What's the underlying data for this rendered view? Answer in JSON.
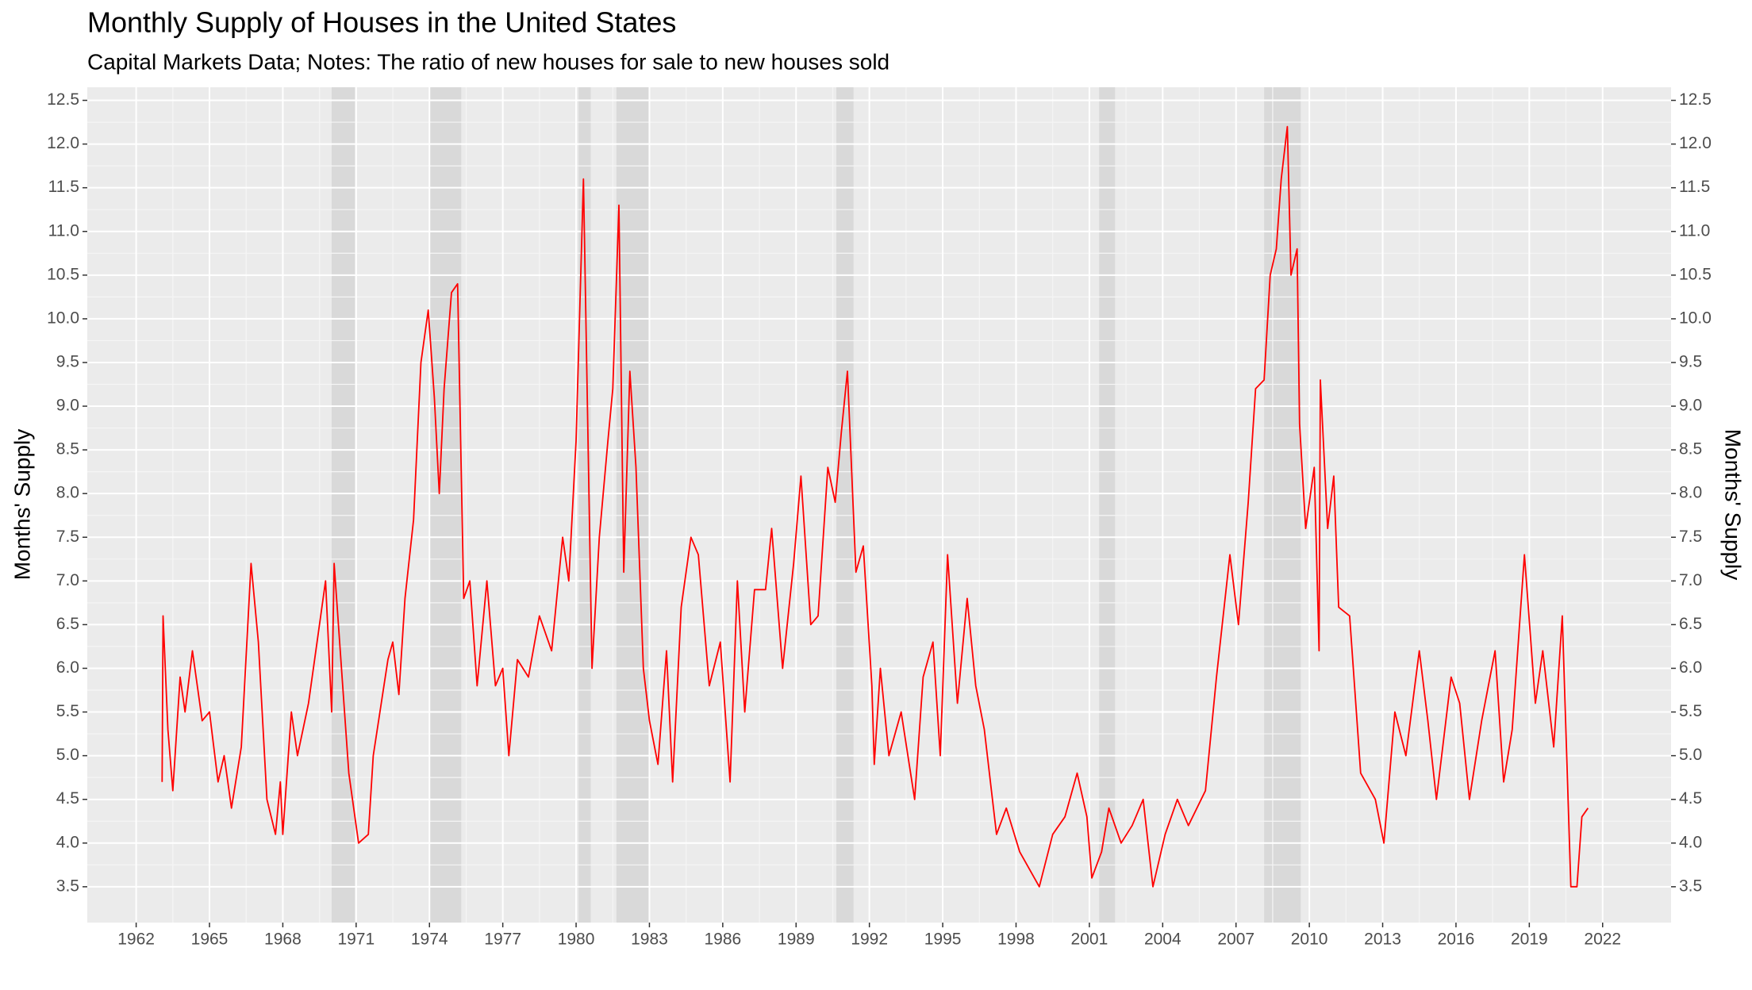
{
  "chart_data": {
    "type": "line",
    "title": "Monthly Supply of Houses in the United States",
    "subtitle": "Capital Markets Data; Notes: The ratio of new houses for sale to new houses sold",
    "y_label": "Months' Supply",
    "y2_label": "Months' Supply",
    "x": [
      1963.06,
      1963.1,
      1963.3,
      1963.5,
      1963.8,
      1964.0,
      1964.3,
      1964.7,
      1965.0,
      1965.35,
      1965.6,
      1965.9,
      1966.3,
      1966.7,
      1967.0,
      1967.35,
      1967.7,
      1967.9,
      1968.0,
      1968.35,
      1968.6,
      1969.05,
      1969.3,
      1969.75,
      1970.0,
      1970.1,
      1970.7,
      1971.1,
      1971.5,
      1971.7,
      1972.3,
      1972.5,
      1972.75,
      1973.0,
      1973.35,
      1973.65,
      1973.95,
      1974.2,
      1974.4,
      1974.6,
      1974.9,
      1975.15,
      1975.4,
      1975.65,
      1975.95,
      1976.35,
      1976.7,
      1977.0,
      1977.25,
      1977.6,
      1978.05,
      1978.5,
      1979.0,
      1979.45,
      1979.7,
      1980.0,
      1980.3,
      1980.65,
      1980.95,
      1981.3,
      1981.5,
      1981.75,
      1981.95,
      1982.2,
      1982.45,
      1982.75,
      1983.0,
      1983.35,
      1983.7,
      1983.95,
      1984.3,
      1984.7,
      1985.0,
      1985.45,
      1985.9,
      1986.3,
      1986.6,
      1986.9,
      1987.3,
      1987.75,
      1988.0,
      1988.45,
      1988.9,
      1989.2,
      1989.6,
      1989.9,
      1990.3,
      1990.6,
      1990.85,
      1991.1,
      1991.45,
      1991.75,
      1992.1,
      1992.2,
      1992.45,
      1992.8,
      1993.3,
      1993.85,
      1994.2,
      1994.6,
      1994.9,
      1995.2,
      1995.6,
      1996.0,
      1996.35,
      1996.7,
      1997.2,
      1997.6,
      1998.15,
      1998.95,
      1999.5,
      2000.0,
      2000.5,
      2000.9,
      2001.1,
      2001.5,
      2001.8,
      2002.3,
      2002.75,
      2003.2,
      2003.6,
      2004.1,
      2004.6,
      2005.05,
      2005.75,
      2006.2,
      2006.75,
      2007.1,
      2007.5,
      2007.8,
      2008.15,
      2008.4,
      2008.65,
      2008.85,
      2009.1,
      2009.25,
      2009.5,
      2009.6,
      2009.85,
      2010.2,
      2010.4,
      2010.45,
      2010.75,
      2011.0,
      2011.2,
      2011.65,
      2012.1,
      2012.7,
      2013.05,
      2013.5,
      2013.95,
      2014.5,
      2014.85,
      2015.2,
      2015.8,
      2016.15,
      2016.55,
      2017.05,
      2017.6,
      2017.95,
      2018.3,
      2018.8,
      2019.25,
      2019.55,
      2020.0,
      2020.35,
      2020.7,
      2020.95,
      2021.15,
      2021.4
    ],
    "series": [
      {
        "name": "Months' Supply",
        "color": "#ff0000",
        "values": [
          4.7,
          6.6,
          5.3,
          4.6,
          5.9,
          5.5,
          6.2,
          5.4,
          5.5,
          4.7,
          5.0,
          4.4,
          5.1,
          7.2,
          6.3,
          4.5,
          4.1,
          4.7,
          4.1,
          5.5,
          5.0,
          5.6,
          6.1,
          7.0,
          5.5,
          7.2,
          4.8,
          4.0,
          4.1,
          5.0,
          6.1,
          6.3,
          5.7,
          6.8,
          7.7,
          9.5,
          10.1,
          9.1,
          8.0,
          9.2,
          10.3,
          10.4,
          6.8,
          7.0,
          5.8,
          7.0,
          5.8,
          6.0,
          5.0,
          6.1,
          5.9,
          6.6,
          6.2,
          7.5,
          7.0,
          8.6,
          11.6,
          6.0,
          7.5,
          8.6,
          9.2,
          11.3,
          7.1,
          9.4,
          8.3,
          6.0,
          5.4,
          4.9,
          6.2,
          4.7,
          6.7,
          7.5,
          7.3,
          5.8,
          6.3,
          4.7,
          7.0,
          5.5,
          6.9,
          6.9,
          7.6,
          6.0,
          7.2,
          8.2,
          6.5,
          6.6,
          8.3,
          7.9,
          8.7,
          9.4,
          7.1,
          7.4,
          5.8,
          4.9,
          6.0,
          5.0,
          5.5,
          4.5,
          5.9,
          6.3,
          5.0,
          7.3,
          5.6,
          6.8,
          5.8,
          5.3,
          4.1,
          4.4,
          3.9,
          3.5,
          4.1,
          4.3,
          4.8,
          4.3,
          3.6,
          3.9,
          4.4,
          4.0,
          4.2,
          4.5,
          3.5,
          4.1,
          4.5,
          4.2,
          4.6,
          5.9,
          7.3,
          6.5,
          7.9,
          9.2,
          9.3,
          10.5,
          10.8,
          11.6,
          12.2,
          10.5,
          10.8,
          8.8,
          7.6,
          8.3,
          6.2,
          9.3,
          7.6,
          8.2,
          6.7,
          6.6,
          4.8,
          4.5,
          4.0,
          5.5,
          5.0,
          6.2,
          5.4,
          4.5,
          5.9,
          5.6,
          4.5,
          5.4,
          6.2,
          4.7,
          5.3,
          7.3,
          5.6,
          6.2,
          5.1,
          6.6,
          3.5,
          3.5,
          4.3,
          4.4
        ]
      }
    ],
    "shaded_ranges": [
      [
        1970.0,
        1970.95
      ],
      [
        1974.0,
        1975.3
      ],
      [
        1980.1,
        1980.6
      ],
      [
        1981.65,
        1983.0
      ],
      [
        1990.65,
        1991.35
      ],
      [
        2001.4,
        2002.05
      ],
      [
        2008.15,
        2009.65
      ]
    ],
    "xlim": [
      1960,
      2024.8
    ],
    "xticks": [
      1962,
      1965,
      1968,
      1971,
      1974,
      1977,
      1980,
      1983,
      1986,
      1989,
      1992,
      1995,
      1998,
      2001,
      2004,
      2007,
      2010,
      2013,
      2016,
      2019,
      2022
    ],
    "ylim": [
      3.09,
      12.65
    ],
    "yticks": [
      3.5,
      {
        "value": 4,
        "label": "4.0"
      },
      4.5,
      {
        "value": 5,
        "label": "5.0"
      },
      5.5,
      {
        "value": 6,
        "label": "6.0"
      },
      6.5,
      {
        "value": 7,
        "label": "7.0"
      },
      7.5,
      {
        "value": 8,
        "label": "8.0"
      },
      8.5,
      {
        "value": 9,
        "label": "9.0"
      },
      9.5,
      {
        "value": 10,
        "label": "10.0"
      },
      10.5,
      {
        "value": 11,
        "label": "11.0"
      },
      11.5,
      {
        "value": 12,
        "label": "12.0"
      },
      12.5
    ],
    "grid": true
  }
}
